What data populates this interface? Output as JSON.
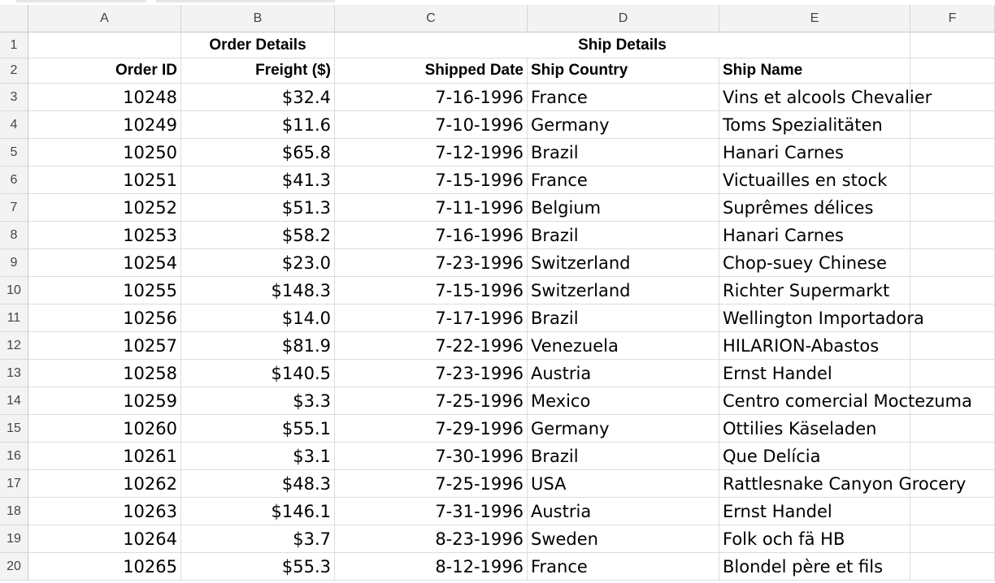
{
  "columns": [
    "A",
    "B",
    "C",
    "D",
    "E",
    "F"
  ],
  "group_headers": {
    "order_details": "Order Details",
    "ship_details": "Ship Details"
  },
  "headers": {
    "order_id": "Order ID",
    "freight": "Freight ($)",
    "shipped_date": "Shipped Date",
    "ship_country": "Ship Country",
    "ship_name": "Ship Name"
  },
  "rows": [
    {
      "row": "3",
      "order_id": "10248",
      "freight": "$32.4",
      "shipped_date": "7-16-1996",
      "ship_country": "France",
      "ship_name": "Vins et alcools Chevalier"
    },
    {
      "row": "4",
      "order_id": "10249",
      "freight": "$11.6",
      "shipped_date": "7-10-1996",
      "ship_country": "Germany",
      "ship_name": "Toms Spezialitäten"
    },
    {
      "row": "5",
      "order_id": "10250",
      "freight": "$65.8",
      "shipped_date": "7-12-1996",
      "ship_country": "Brazil",
      "ship_name": "Hanari Carnes"
    },
    {
      "row": "6",
      "order_id": "10251",
      "freight": "$41.3",
      "shipped_date": "7-15-1996",
      "ship_country": "France",
      "ship_name": "Victuailles en stock"
    },
    {
      "row": "7",
      "order_id": "10252",
      "freight": "$51.3",
      "shipped_date": "7-11-1996",
      "ship_country": "Belgium",
      "ship_name": "Suprêmes délices"
    },
    {
      "row": "8",
      "order_id": "10253",
      "freight": "$58.2",
      "shipped_date": "7-16-1996",
      "ship_country": "Brazil",
      "ship_name": "Hanari Carnes"
    },
    {
      "row": "9",
      "order_id": "10254",
      "freight": "$23.0",
      "shipped_date": "7-23-1996",
      "ship_country": "Switzerland",
      "ship_name": "Chop-suey Chinese"
    },
    {
      "row": "10",
      "order_id": "10255",
      "freight": "$148.3",
      "shipped_date": "7-15-1996",
      "ship_country": "Switzerland",
      "ship_name": "Richter Supermarkt"
    },
    {
      "row": "11",
      "order_id": "10256",
      "freight": "$14.0",
      "shipped_date": "7-17-1996",
      "ship_country": "Brazil",
      "ship_name": "Wellington Importadora"
    },
    {
      "row": "12",
      "order_id": "10257",
      "freight": "$81.9",
      "shipped_date": "7-22-1996",
      "ship_country": "Venezuela",
      "ship_name": "HILARION-Abastos"
    },
    {
      "row": "13",
      "order_id": "10258",
      "freight": "$140.5",
      "shipped_date": "7-23-1996",
      "ship_country": "Austria",
      "ship_name": "Ernst Handel"
    },
    {
      "row": "14",
      "order_id": "10259",
      "freight": "$3.3",
      "shipped_date": "7-25-1996",
      "ship_country": "Mexico",
      "ship_name": "Centro comercial Moctezuma"
    },
    {
      "row": "15",
      "order_id": "10260",
      "freight": "$55.1",
      "shipped_date": "7-29-1996",
      "ship_country": "Germany",
      "ship_name": "Ottilies Käseladen"
    },
    {
      "row": "16",
      "order_id": "10261",
      "freight": "$3.1",
      "shipped_date": "7-30-1996",
      "ship_country": "Brazil",
      "ship_name": "Que Delícia"
    },
    {
      "row": "17",
      "order_id": "10262",
      "freight": "$48.3",
      "shipped_date": "7-25-1996",
      "ship_country": "USA",
      "ship_name": "Rattlesnake Canyon Grocery"
    },
    {
      "row": "18",
      "order_id": "10263",
      "freight": "$146.1",
      "shipped_date": "7-31-1996",
      "ship_country": "Austria",
      "ship_name": "Ernst Handel"
    },
    {
      "row": "19",
      "order_id": "10264",
      "freight": "$3.7",
      "shipped_date": "8-23-1996",
      "ship_country": "Sweden",
      "ship_name": "Folk och fä HB"
    },
    {
      "row": "20",
      "order_id": "10265",
      "freight": "$55.3",
      "shipped_date": "8-12-1996",
      "ship_country": "France",
      "ship_name": "Blondel père et fils"
    }
  ]
}
